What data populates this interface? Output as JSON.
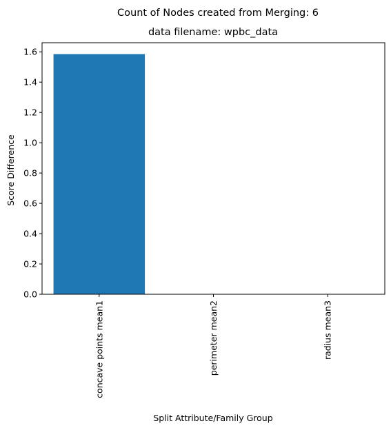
{
  "chart_data": {
    "type": "bar",
    "suptitle": "Count of Nodes created from Merging: 6",
    "title": "data filename: wpbc_data",
    "xlabel": "Split Attribute/Family Group",
    "ylabel": "Score Difference",
    "categories": [
      "concave points mean1",
      "perimeter mean2",
      "radius mean3"
    ],
    "values": [
      1.585,
      0.0,
      0.0
    ],
    "ylim": [
      0,
      1.66
    ],
    "yticks": [
      "0.0",
      "0.2",
      "0.4",
      "0.6",
      "0.8",
      "1.0",
      "1.2",
      "1.4",
      "1.6"
    ],
    "grid": false,
    "legend": "none",
    "bar_color": "#1f77b4"
  }
}
